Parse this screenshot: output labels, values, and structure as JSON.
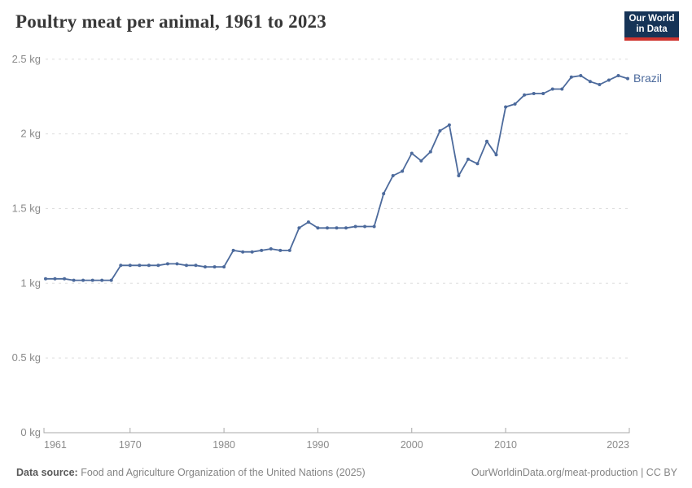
{
  "header": {
    "title": "Poultry meat per animal, 1961 to 2023",
    "logo_line1": "Our World",
    "logo_line2": "in Data"
  },
  "chart_data": {
    "type": "line",
    "title": "Poultry meat per animal, 1961 to 2023",
    "xlabel": "",
    "ylabel": "",
    "xlim": [
      1961,
      2023
    ],
    "ylim": [
      0,
      2.5
    ],
    "grid": "horizontal-dashed",
    "legend_position": "end-of-line-label",
    "x_ticks": [
      1961,
      1970,
      1980,
      1990,
      2000,
      2010,
      2023
    ],
    "y_ticks": [
      {
        "value": 0,
        "label": "0 kg"
      },
      {
        "value": 0.5,
        "label": "0.5 kg"
      },
      {
        "value": 1,
        "label": "1 kg"
      },
      {
        "value": 1.5,
        "label": "1.5 kg"
      },
      {
        "value": 2,
        "label": "2 kg"
      },
      {
        "value": 2.5,
        "label": "2.5 kg"
      }
    ],
    "series": [
      {
        "name": "Brazil",
        "color": "#4c6a9c",
        "x": [
          1961,
          1962,
          1963,
          1964,
          1965,
          1966,
          1967,
          1968,
          1969,
          1970,
          1971,
          1972,
          1973,
          1974,
          1975,
          1976,
          1977,
          1978,
          1979,
          1980,
          1981,
          1982,
          1983,
          1984,
          1985,
          1986,
          1987,
          1988,
          1989,
          1990,
          1991,
          1992,
          1993,
          1994,
          1995,
          1996,
          1997,
          1998,
          1999,
          2000,
          2001,
          2002,
          2003,
          2004,
          2005,
          2006,
          2007,
          2008,
          2009,
          2010,
          2011,
          2012,
          2013,
          2014,
          2015,
          2016,
          2017,
          2018,
          2019,
          2020,
          2021,
          2022,
          2023
        ],
        "values": [
          1.03,
          1.03,
          1.03,
          1.02,
          1.02,
          1.02,
          1.02,
          1.02,
          1.12,
          1.12,
          1.12,
          1.12,
          1.12,
          1.13,
          1.13,
          1.12,
          1.12,
          1.11,
          1.11,
          1.11,
          1.22,
          1.21,
          1.21,
          1.22,
          1.23,
          1.22,
          1.22,
          1.37,
          1.41,
          1.37,
          1.37,
          1.37,
          1.37,
          1.38,
          1.38,
          1.38,
          1.6,
          1.72,
          1.75,
          1.87,
          1.82,
          1.88,
          2.02,
          2.06,
          1.72,
          1.83,
          1.8,
          1.95,
          1.86,
          2.18,
          2.2,
          2.26,
          2.27,
          2.27,
          2.3,
          2.3,
          2.38,
          2.39,
          2.35,
          2.33,
          2.36,
          2.39,
          2.37
        ]
      }
    ]
  },
  "footer": {
    "source_label": "Data source:",
    "source_text": " Food and Agriculture Organization of the United Nations (2025)",
    "credit": "OurWorldinData.org/meat-production | CC BY"
  },
  "colors": {
    "line": "#4c6a9c",
    "logo_bg": "#163457",
    "logo_bar": "#cf342e",
    "title_text": "#383838",
    "axis_text": "#8a8a8a",
    "gridline": "#dddddd",
    "axis_line": "#a8a8a8"
  }
}
